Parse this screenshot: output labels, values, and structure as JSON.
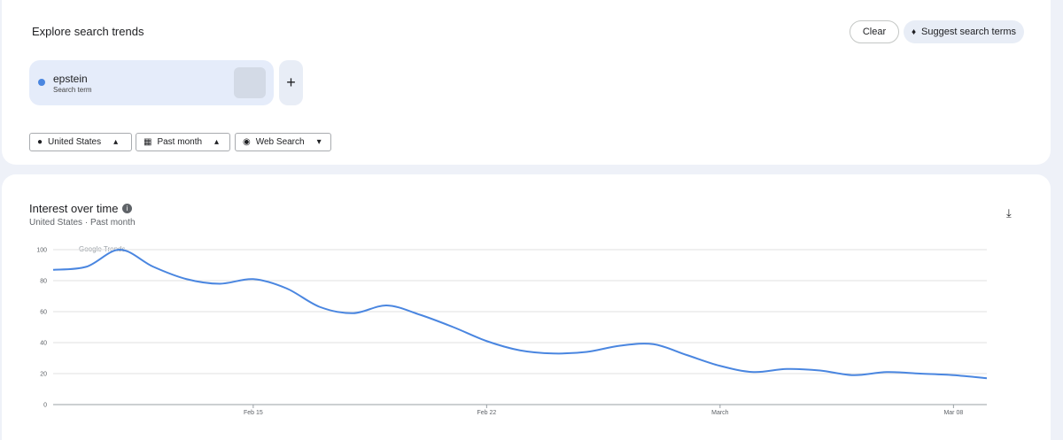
{
  "header": {
    "title": "Explore search trends",
    "clear": "Clear",
    "suggest": "Suggest search terms"
  },
  "term": {
    "name": "epstein",
    "label": "Search term"
  },
  "filters": [
    "United States",
    "Past month",
    "Web Search"
  ],
  "chart_data": {
    "type": "line",
    "title": "Interest over time",
    "subtitle": [
      "United States",
      "Past month"
    ],
    "watermark": "Google Trends",
    "categories": [
      null,
      null,
      null,
      null,
      null,
      null,
      "Feb 15",
      null,
      null,
      null,
      null,
      null,
      null,
      "Feb 22",
      null,
      null,
      null,
      null,
      null,
      null,
      "March",
      null,
      null,
      null,
      null,
      null,
      null,
      "Mar 08",
      null
    ],
    "series": [
      {
        "name": "epstein",
        "color": "#4a86e0",
        "values": [
          87,
          89,
          100,
          89,
          81,
          78,
          81,
          75,
          63,
          59,
          64,
          58,
          50,
          41,
          35,
          33,
          34,
          38,
          39,
          32,
          25,
          21,
          23,
          22,
          19,
          21,
          20,
          19,
          17
        ]
      }
    ],
    "ylim": [
      0,
      100
    ],
    "yticks": [
      0,
      20,
      40,
      60,
      80,
      100
    ],
    "grid": true
  }
}
